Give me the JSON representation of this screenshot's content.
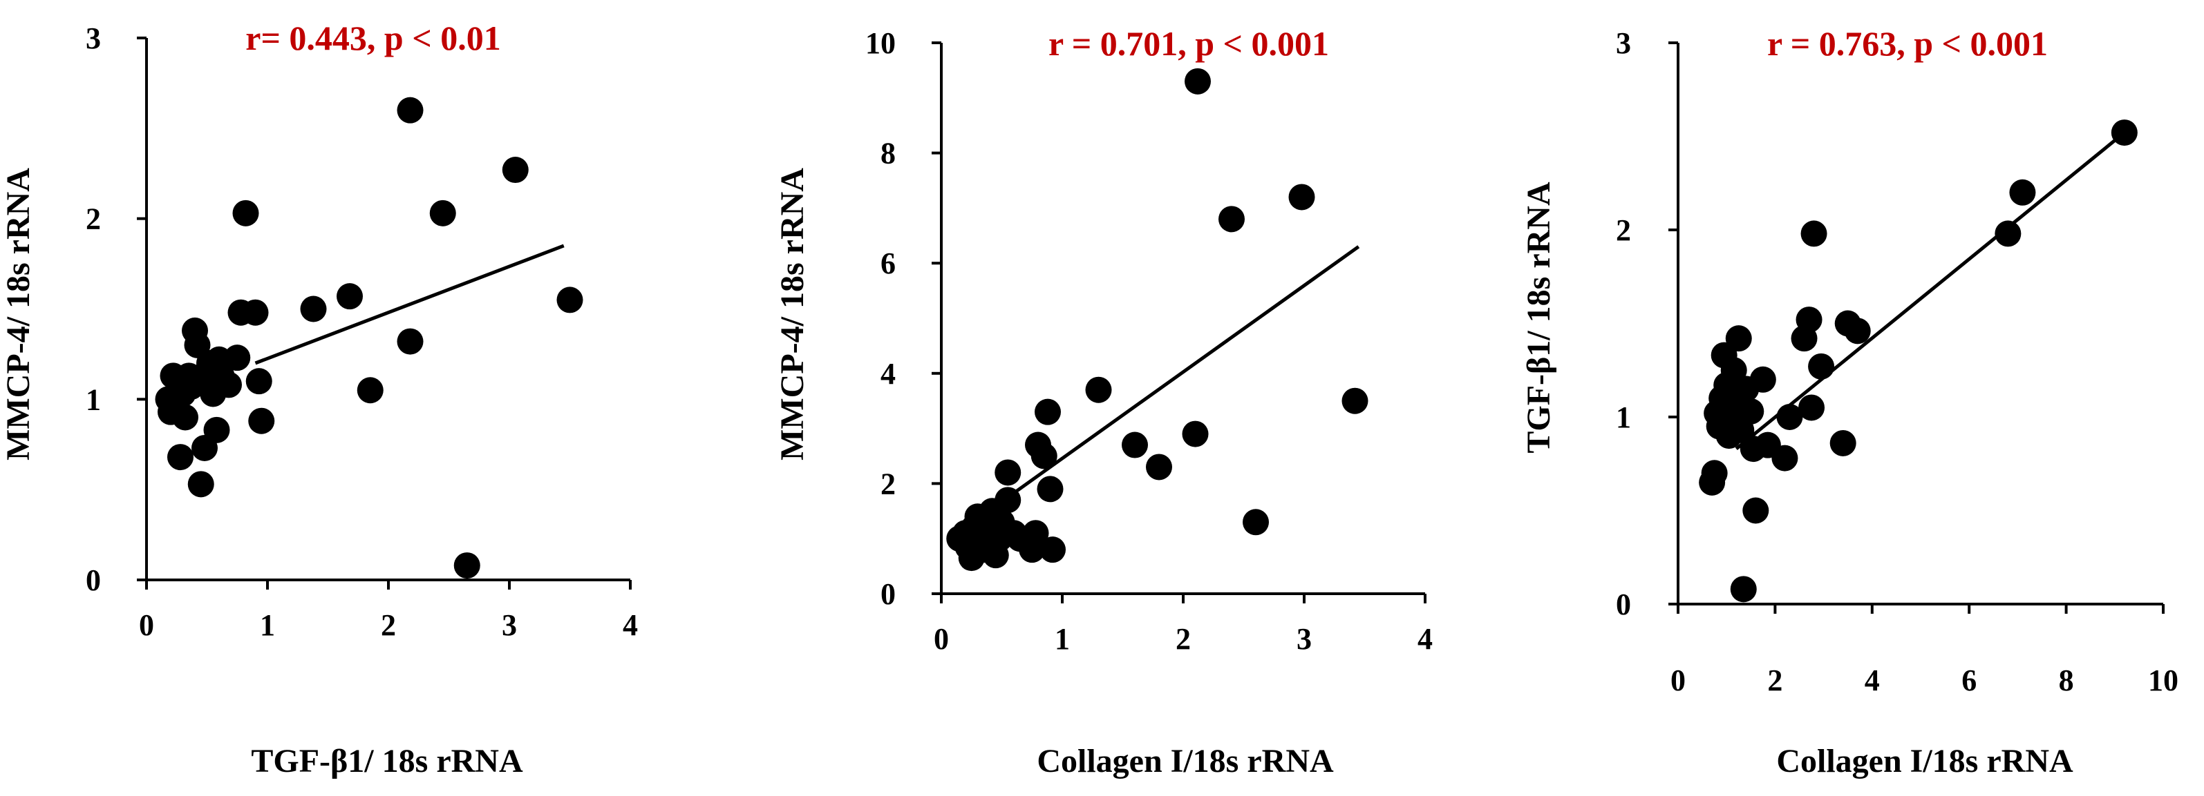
{
  "chart_data": [
    {
      "type": "scatter",
      "title": "",
      "annotation": "r= 0.443, p < 0.01",
      "xlabel": "TGF-β1/ 18s rRNA",
      "ylabel": "MMCP-4/ 18s rRNA",
      "xlim": [
        0,
        4
      ],
      "ylim": [
        0,
        3
      ],
      "xticks": [
        0,
        1,
        2,
        3,
        4
      ],
      "yticks": [
        0,
        1,
        2,
        3
      ],
      "grid": false,
      "trendline": {
        "x": [
          0.9,
          3.45
        ],
        "y": [
          1.2,
          1.85
        ]
      },
      "points": [
        {
          "x": 0.18,
          "y": 1.0
        },
        {
          "x": 0.2,
          "y": 0.93
        },
        {
          "x": 0.22,
          "y": 1.13
        },
        {
          "x": 0.25,
          "y": 0.95
        },
        {
          "x": 0.28,
          "y": 0.68
        },
        {
          "x": 0.3,
          "y": 1.03
        },
        {
          "x": 0.32,
          "y": 0.9
        },
        {
          "x": 0.35,
          "y": 1.13
        },
        {
          "x": 0.37,
          "y": 1.07
        },
        {
          "x": 0.4,
          "y": 1.38
        },
        {
          "x": 0.42,
          "y": 1.3
        },
        {
          "x": 0.45,
          "y": 0.53
        },
        {
          "x": 0.48,
          "y": 0.73
        },
        {
          "x": 0.5,
          "y": 1.15
        },
        {
          "x": 0.52,
          "y": 1.2
        },
        {
          "x": 0.55,
          "y": 1.03
        },
        {
          "x": 0.58,
          "y": 0.83
        },
        {
          "x": 0.6,
          "y": 1.22
        },
        {
          "x": 0.62,
          "y": 1.13
        },
        {
          "x": 0.68,
          "y": 1.08
        },
        {
          "x": 0.75,
          "y": 1.23
        },
        {
          "x": 0.78,
          "y": 1.48
        },
        {
          "x": 0.82,
          "y": 2.03
        },
        {
          "x": 0.9,
          "y": 1.48
        },
        {
          "x": 0.93,
          "y": 1.1
        },
        {
          "x": 0.95,
          "y": 0.88
        },
        {
          "x": 1.38,
          "y": 1.5
        },
        {
          "x": 1.68,
          "y": 1.57
        },
        {
          "x": 1.85,
          "y": 1.05
        },
        {
          "x": 2.18,
          "y": 2.6
        },
        {
          "x": 2.18,
          "y": 1.32
        },
        {
          "x": 2.45,
          "y": 2.03
        },
        {
          "x": 2.65,
          "y": 0.08
        },
        {
          "x": 3.05,
          "y": 2.27
        },
        {
          "x": 3.5,
          "y": 1.55
        }
      ]
    },
    {
      "type": "scatter",
      "title": "",
      "annotation": "r = 0.701, p < 0.001",
      "xlabel": "Collagen I/18s rRNA",
      "ylabel": "MMCP-4/ 18s rRNA",
      "xlim": [
        0,
        4
      ],
      "ylim": [
        0,
        10
      ],
      "xticks": [
        0,
        1,
        2,
        3,
        4
      ],
      "yticks": [
        0,
        2,
        4,
        6,
        8,
        10
      ],
      "grid": false,
      "trendline": {
        "x": [
          0.55,
          3.45
        ],
        "y": [
          1.75,
          6.3
        ]
      },
      "points": [
        {
          "x": 0.15,
          "y": 1.0
        },
        {
          "x": 0.2,
          "y": 1.1
        },
        {
          "x": 0.22,
          "y": 0.85
        },
        {
          "x": 0.25,
          "y": 0.65
        },
        {
          "x": 0.27,
          "y": 1.2
        },
        {
          "x": 0.3,
          "y": 1.4
        },
        {
          "x": 0.32,
          "y": 1.0
        },
        {
          "x": 0.35,
          "y": 0.8
        },
        {
          "x": 0.38,
          "y": 1.2
        },
        {
          "x": 0.4,
          "y": 0.9
        },
        {
          "x": 0.42,
          "y": 1.5
        },
        {
          "x": 0.45,
          "y": 0.7
        },
        {
          "x": 0.48,
          "y": 1.0
        },
        {
          "x": 0.5,
          "y": 1.3
        },
        {
          "x": 0.55,
          "y": 2.2
        },
        {
          "x": 0.55,
          "y": 1.7
        },
        {
          "x": 0.6,
          "y": 1.1
        },
        {
          "x": 0.65,
          "y": 1.0
        },
        {
          "x": 0.75,
          "y": 0.8
        },
        {
          "x": 0.78,
          "y": 1.1
        },
        {
          "x": 0.8,
          "y": 2.7
        },
        {
          "x": 0.85,
          "y": 2.5
        },
        {
          "x": 0.88,
          "y": 3.3
        },
        {
          "x": 0.9,
          "y": 1.9
        },
        {
          "x": 0.92,
          "y": 0.8
        },
        {
          "x": 1.3,
          "y": 3.7
        },
        {
          "x": 1.6,
          "y": 2.7
        },
        {
          "x": 1.8,
          "y": 2.3
        },
        {
          "x": 2.1,
          "y": 2.9
        },
        {
          "x": 2.12,
          "y": 9.3
        },
        {
          "x": 2.4,
          "y": 6.8
        },
        {
          "x": 2.6,
          "y": 1.3
        },
        {
          "x": 2.98,
          "y": 7.2
        },
        {
          "x": 3.42,
          "y": 3.5
        }
      ]
    },
    {
      "type": "scatter",
      "title": "",
      "annotation": "r = 0.763, p < 0.001",
      "xlabel": "Collagen I/18s rRNA",
      "ylabel": "TGF-β1/ 18s rRNA",
      "xlim": [
        0,
        10
      ],
      "ylim": [
        0,
        3
      ],
      "xticks": [
        0,
        2,
        4,
        6,
        8,
        10
      ],
      "yticks": [
        0,
        1,
        2,
        3
      ],
      "grid": false,
      "trendline": {
        "x": [
          1.2,
          9.2
        ],
        "y": [
          0.83,
          2.52
        ]
      },
      "points": [
        {
          "x": 0.7,
          "y": 0.65
        },
        {
          "x": 0.75,
          "y": 0.7
        },
        {
          "x": 0.8,
          "y": 1.02
        },
        {
          "x": 0.85,
          "y": 0.95
        },
        {
          "x": 0.9,
          "y": 1.1
        },
        {
          "x": 0.95,
          "y": 1.33
        },
        {
          "x": 1.0,
          "y": 1.17
        },
        {
          "x": 1.05,
          "y": 0.9
        },
        {
          "x": 1.1,
          "y": 1.0
        },
        {
          "x": 1.15,
          "y": 1.25
        },
        {
          "x": 1.2,
          "y": 1.05
        },
        {
          "x": 1.25,
          "y": 1.42
        },
        {
          "x": 1.3,
          "y": 0.93
        },
        {
          "x": 1.35,
          "y": 0.08
        },
        {
          "x": 1.4,
          "y": 1.15
        },
        {
          "x": 1.5,
          "y": 1.03
        },
        {
          "x": 1.55,
          "y": 0.83
        },
        {
          "x": 1.6,
          "y": 0.5
        },
        {
          "x": 1.75,
          "y": 1.2
        },
        {
          "x": 1.85,
          "y": 0.85
        },
        {
          "x": 2.2,
          "y": 0.78
        },
        {
          "x": 2.3,
          "y": 1.0
        },
        {
          "x": 2.6,
          "y": 1.42
        },
        {
          "x": 2.7,
          "y": 1.52
        },
        {
          "x": 2.75,
          "y": 1.05
        },
        {
          "x": 2.8,
          "y": 1.98
        },
        {
          "x": 2.95,
          "y": 1.27
        },
        {
          "x": 3.4,
          "y": 0.86
        },
        {
          "x": 3.5,
          "y": 1.5
        },
        {
          "x": 3.7,
          "y": 1.46
        },
        {
          "x": 6.8,
          "y": 1.98
        },
        {
          "x": 7.1,
          "y": 2.2
        },
        {
          "x": 9.2,
          "y": 2.52
        }
      ]
    }
  ]
}
